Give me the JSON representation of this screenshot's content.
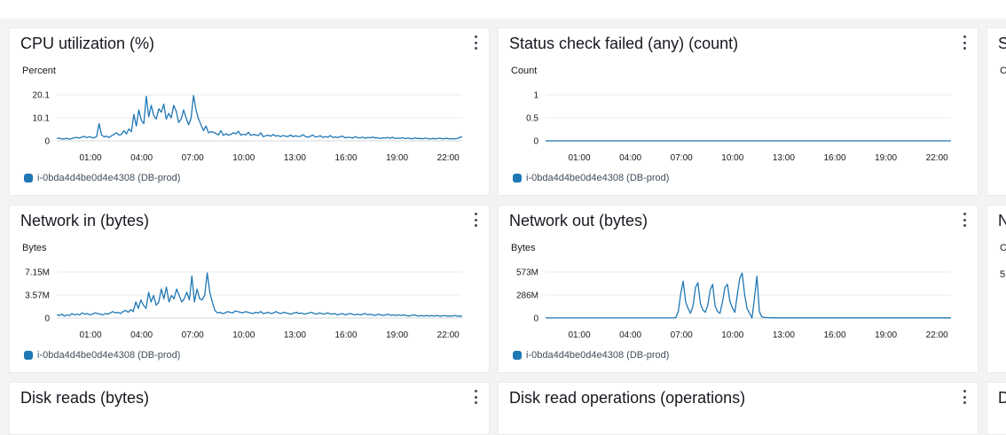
{
  "widgets": [
    {
      "title": "CPU utilization (%)",
      "unit": "Percent",
      "yticks": [
        "20.1",
        "10.1",
        "0"
      ],
      "ymax": 20.1,
      "legend": "i-0bda4d4be0d4e4308 (DB-prod)",
      "values": [
        1.0,
        1.2,
        0.8,
        0.9,
        1.1,
        0.7,
        1.0,
        1.3,
        1.5,
        1.2,
        1.6,
        2.0,
        1.4,
        1.8,
        1.5,
        1.3,
        1.9,
        7.5,
        2.5,
        1.8,
        2.0,
        1.5,
        2.2,
        2.8,
        3.5,
        2.5,
        2.8,
        4.5,
        3.0,
        5.2,
        4.0,
        11.5,
        6.5,
        13.5,
        9.0,
        7.5,
        19.5,
        10.5,
        15.5,
        11.0,
        9.5,
        14.0,
        12.5,
        16.0,
        9.5,
        12.0,
        10.0,
        15.5,
        13.0,
        8.0,
        9.5,
        13.5,
        10.0,
        7.0,
        10.0,
        19.8,
        13.5,
        9.5,
        7.0,
        4.5,
        6.5,
        3.5,
        4.0,
        3.8,
        3.2,
        2.6,
        4.5,
        2.4,
        3.1,
        2.5,
        2.8,
        3.6,
        3.0,
        4.2,
        2.5,
        2.9,
        2.6,
        3.8,
        2.4,
        2.8,
        2.6,
        2.3,
        3.5,
        1.8,
        2.2,
        2.5,
        2.0,
        2.8,
        2.1,
        2.3,
        1.8,
        2.4,
        2.0,
        1.9,
        2.6,
        1.8,
        2.2,
        1.9,
        2.0,
        2.7,
        1.8,
        1.6,
        2.1,
        2.5,
        1.7,
        1.9,
        2.2,
        1.5,
        1.8,
        1.6,
        2.3,
        1.5,
        1.7,
        1.4,
        1.9,
        2.0,
        1.3,
        1.6,
        1.5,
        1.2,
        1.8,
        1.4,
        1.3,
        1.6,
        1.1,
        1.5,
        1.3,
        1.7,
        1.2,
        1.4,
        1.0,
        1.3,
        1.2,
        1.5,
        1.1,
        1.6,
        1.0,
        1.2,
        1.1,
        1.4,
        1.0,
        1.2,
        1.1,
        0.9,
        1.3,
        1.0,
        1.1,
        0.9,
        1.2,
        1.0,
        0.8,
        1.1,
        0.9,
        1.0,
        1.2,
        0.9,
        1.0,
        1.1,
        0.8,
        1.0,
        0.9,
        1.0,
        1.5,
        1.8
      ]
    },
    {
      "title": "Status check failed (any) (count)",
      "unit": "Count",
      "yticks": [
        "1",
        "0.5",
        "0"
      ],
      "ymax": 1,
      "legend": "i-0bda4d4be0d4e4308 (DB-prod)",
      "values": [
        0,
        0,
        0,
        0,
        0,
        0,
        0,
        0,
        0,
        0,
        0,
        0,
        0,
        0,
        0,
        0,
        0,
        0,
        0,
        0,
        0,
        0,
        0,
        0,
        0,
        0,
        0,
        0,
        0,
        0,
        0,
        0,
        0,
        0,
        0,
        0,
        0,
        0,
        0,
        0,
        0,
        0,
        0,
        0,
        0,
        0,
        0,
        0,
        0,
        0
      ]
    },
    {
      "title": "S",
      "unit": "C",
      "yticks": [],
      "ymax": 1,
      "legend": "",
      "values": []
    },
    {
      "title": "Network in (bytes)",
      "unit": "Bytes",
      "yticks": [
        "7.15M",
        "3.57M",
        "0"
      ],
      "ymax": 7.15,
      "legend": "i-0bda4d4be0d4e4308 (DB-prod)",
      "values": [
        0.5,
        0.4,
        0.6,
        0.3,
        0.5,
        0.4,
        0.7,
        0.5,
        0.6,
        0.5,
        0.8,
        0.6,
        0.7,
        0.5,
        0.6,
        0.8,
        0.7,
        0.6,
        0.5,
        0.7,
        0.6,
        0.8,
        1.0,
        0.8,
        0.9,
        0.7,
        1.0,
        1.2,
        0.9,
        1.3,
        1.0,
        2.5,
        1.5,
        2.8,
        2.0,
        1.5,
        4.0,
        2.5,
        3.5,
        2.0,
        2.5,
        4.5,
        3.0,
        4.8,
        2.5,
        3.5,
        3.0,
        4.5,
        3.5,
        2.5,
        3.0,
        4.0,
        2.8,
        6.5,
        2.5,
        4.5,
        3.0,
        2.8,
        3.5,
        7.0,
        4.0,
        2.5,
        1.2,
        0.8,
        0.9,
        0.7,
        0.8,
        1.0,
        0.9,
        0.8,
        1.1,
        1.0,
        0.9,
        0.8,
        1.0,
        0.9,
        0.8,
        0.7,
        0.9,
        0.8,
        1.0,
        0.7,
        0.8,
        0.9,
        0.7,
        0.8,
        1.0,
        0.8,
        0.7,
        0.9,
        0.8,
        0.7,
        0.6,
        0.8,
        0.9,
        0.7,
        0.8,
        0.6,
        0.7,
        0.8,
        0.9,
        0.7,
        0.6,
        0.8,
        0.7,
        0.6,
        0.8,
        0.7,
        0.6,
        0.7,
        0.5,
        0.6,
        0.7,
        0.5,
        0.6,
        0.7,
        0.6,
        0.5,
        0.6,
        0.5,
        0.6,
        0.7,
        0.5,
        0.6,
        0.5,
        0.4,
        0.6,
        0.5,
        0.4,
        0.5,
        0.6,
        0.4,
        0.5,
        0.4,
        0.5,
        0.4,
        0.5,
        0.4,
        0.3,
        0.4,
        0.5,
        0.4,
        0.3,
        0.4,
        0.3,
        0.4,
        0.3,
        0.4,
        0.3,
        0.4,
        0.3,
        0.3,
        0.4,
        0.3,
        0.3,
        0.3,
        0.4,
        0.3,
        0.3,
        0.3
      ]
    },
    {
      "title": "Network out (bytes)",
      "unit": "Bytes",
      "yticks": [
        "573M",
        "286M",
        "0"
      ],
      "ymax": 573,
      "legend": "i-0bda4d4be0d4e4308 (DB-prod)",
      "values": [
        1,
        1,
        1,
        1,
        1,
        1,
        1,
        1,
        1,
        1,
        1,
        1,
        1,
        1,
        1,
        1,
        1,
        1,
        1,
        1,
        1,
        1,
        1,
        1,
        1,
        1,
        1,
        1,
        1,
        1,
        1,
        1,
        1,
        1,
        1,
        1,
        1,
        1,
        1,
        1,
        1,
        1,
        1,
        1,
        1,
        1,
        1,
        1,
        1,
        1,
        1,
        1,
        2,
        5,
        80,
        300,
        460,
        200,
        120,
        60,
        150,
        380,
        440,
        180,
        100,
        70,
        160,
        350,
        420,
        150,
        80,
        60,
        200,
        380,
        420,
        210,
        130,
        70,
        280,
        490,
        560,
        300,
        120,
        60,
        2,
        240,
        520,
        80,
        15,
        8,
        5,
        4,
        3,
        3,
        2,
        2,
        2,
        2,
        2,
        2,
        2,
        2,
        2,
        2,
        2,
        2,
        2,
        2,
        2,
        2,
        2,
        2,
        2,
        2,
        2,
        2,
        2,
        2,
        2,
        2,
        2,
        2,
        2,
        2,
        2,
        2,
        2,
        2,
        2,
        2,
        2,
        2,
        2,
        2,
        2,
        2,
        2,
        2,
        2,
        2,
        2,
        2,
        2,
        2,
        2,
        2,
        2,
        2,
        2,
        2,
        2,
        2,
        2,
        2,
        2,
        2,
        2,
        2,
        2,
        2,
        2,
        2,
        2,
        2,
        2,
        2
      ]
    },
    {
      "title": "N",
      "unit": "C",
      "yticks": [
        "5"
      ],
      "ymax": 1,
      "legend": "",
      "values": []
    },
    {
      "title": "Disk reads (bytes)",
      "unit": "",
      "yticks": [],
      "ymax": 1,
      "legend": "",
      "values": []
    },
    {
      "title": "Disk read operations (operations)",
      "unit": "",
      "yticks": [],
      "ymax": 1,
      "legend": "",
      "values": []
    },
    {
      "title": "D",
      "unit": "",
      "yticks": [],
      "ymax": 1,
      "legend": "",
      "values": []
    }
  ],
  "xticks": [
    "01:00",
    "04:00",
    "07:00",
    "10:00",
    "13:00",
    "16:00",
    "19:00",
    "22:00"
  ],
  "colors": {
    "series": "#1f77b4",
    "grid": "#e9ebed",
    "axis": "#d1d5db"
  },
  "icons": {
    "menu": "ellipsis-vertical-icon",
    "legend": "legend-swatch-icon"
  }
}
